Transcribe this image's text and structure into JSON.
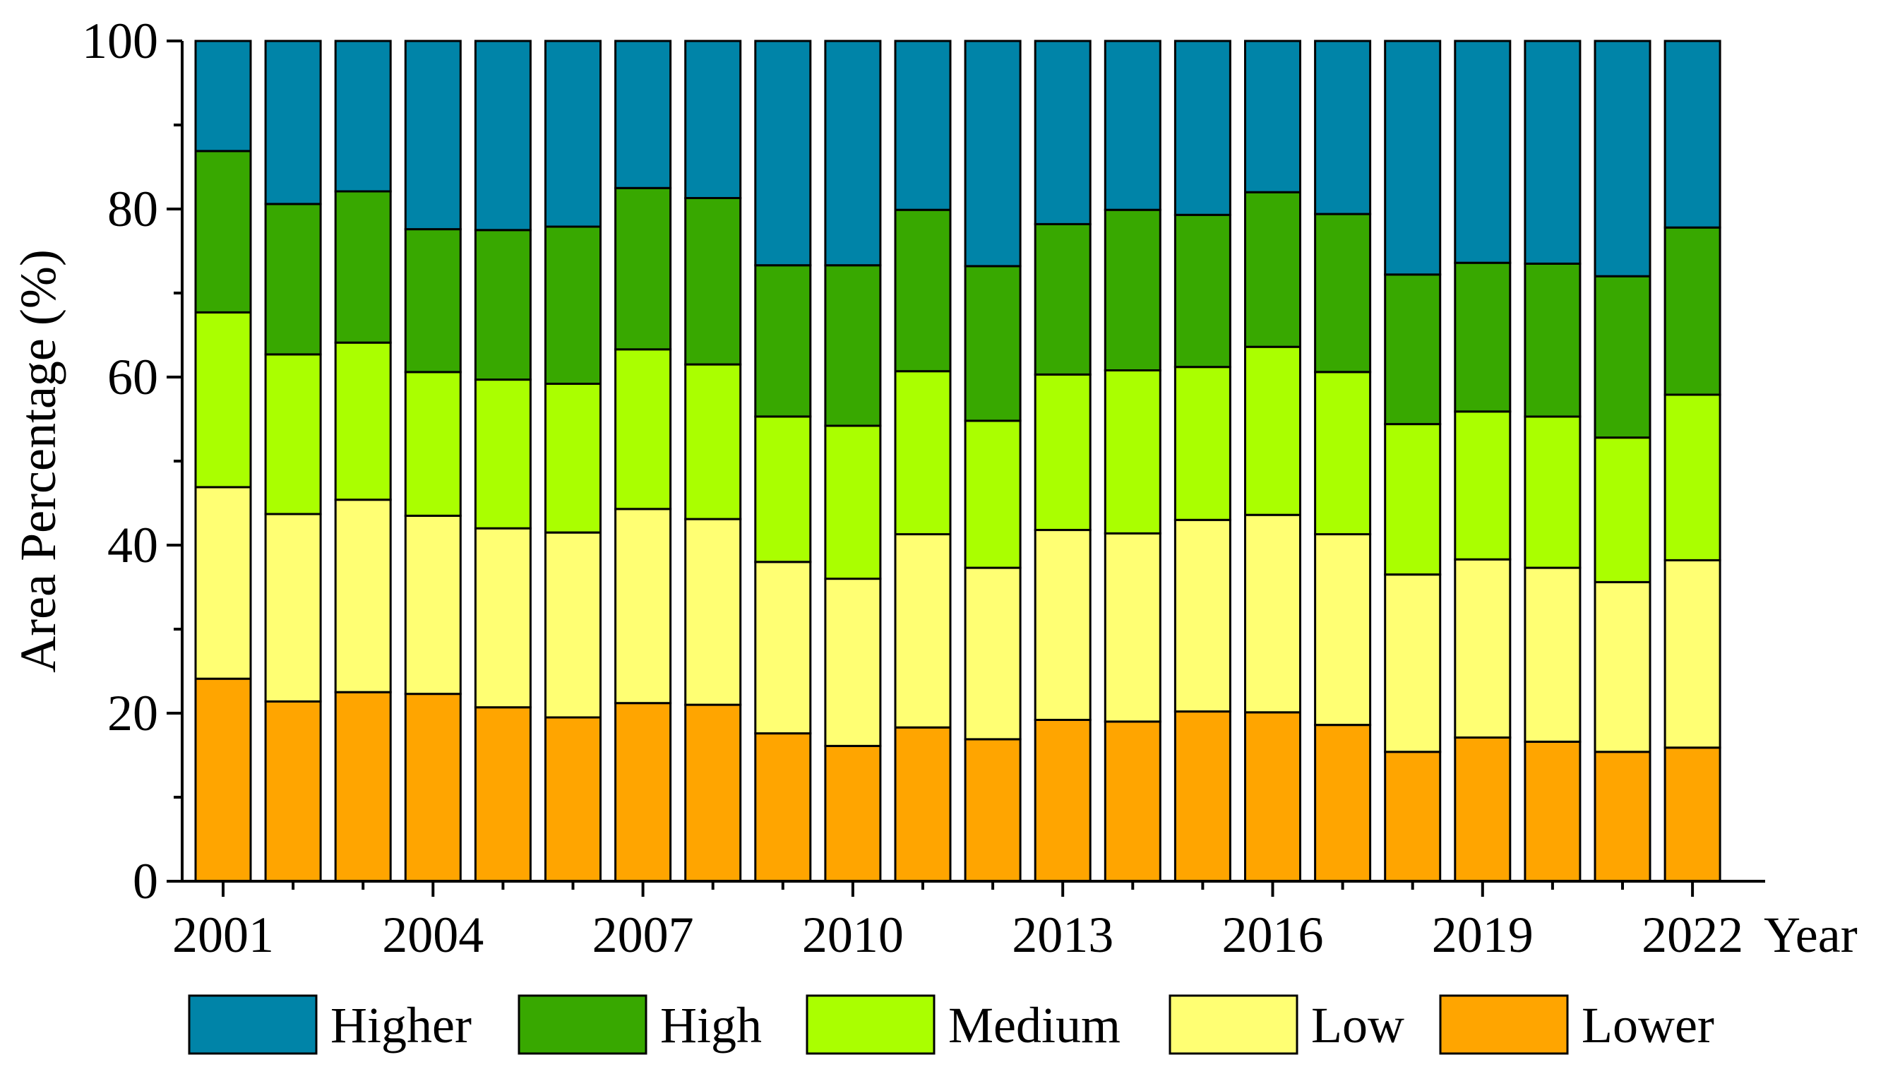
{
  "chart_data": {
    "type": "bar",
    "stacked": true,
    "title": "",
    "xlabel": "Year",
    "ylabel": "Area Percentage (%)",
    "ylim": [
      0,
      100
    ],
    "yticks": [
      0,
      20,
      40,
      60,
      80,
      100
    ],
    "categories": [
      "2001",
      "2002",
      "2003",
      "2004",
      "2005",
      "2006",
      "2007",
      "2008",
      "2009",
      "2010",
      "2011",
      "2012",
      "2013",
      "2014",
      "2015",
      "2016",
      "2017",
      "2018",
      "2019",
      "2020",
      "2021",
      "2022"
    ],
    "xtick_labels": [
      "2001",
      "2004",
      "2007",
      "2010",
      "2013",
      "2016",
      "2019",
      "2022"
    ],
    "legend_position": "bottom",
    "series": [
      {
        "name": "Lower",
        "color": "#FFA500",
        "values": [
          24.1,
          21.4,
          22.5,
          22.3,
          20.7,
          19.5,
          21.2,
          21.0,
          17.6,
          16.1,
          18.3,
          16.9,
          19.2,
          19.0,
          20.2,
          20.1,
          18.6,
          15.4,
          17.1,
          16.6,
          15.4,
          15.9
        ]
      },
      {
        "name": "Low",
        "color": "#FFFF73",
        "values": [
          22.8,
          22.3,
          22.9,
          21.2,
          21.3,
          22.0,
          23.1,
          22.1,
          20.4,
          19.9,
          23.0,
          20.4,
          22.6,
          22.4,
          22.8,
          23.5,
          22.7,
          21.1,
          21.2,
          20.7,
          20.2,
          22.3
        ]
      },
      {
        "name": "Medium",
        "color": "#AAFF00",
        "values": [
          20.8,
          19.0,
          18.7,
          17.1,
          17.7,
          17.7,
          19.0,
          18.4,
          17.3,
          18.2,
          19.4,
          17.5,
          18.5,
          19.4,
          18.2,
          20.0,
          19.3,
          17.9,
          17.6,
          18.0,
          17.2,
          19.7
        ]
      },
      {
        "name": "High",
        "color": "#38A800",
        "values": [
          19.2,
          17.9,
          18.0,
          17.0,
          17.8,
          18.7,
          19.2,
          19.8,
          18.0,
          19.1,
          19.2,
          18.4,
          17.9,
          19.1,
          18.1,
          18.4,
          18.8,
          17.8,
          17.7,
          18.2,
          19.2,
          19.9
        ]
      },
      {
        "name": "Higher",
        "color": "#0084A8",
        "values": [
          13.1,
          19.4,
          17.9,
          22.4,
          22.5,
          22.1,
          17.5,
          18.7,
          26.7,
          26.7,
          20.1,
          26.8,
          21.8,
          20.1,
          20.7,
          18.0,
          20.6,
          27.8,
          26.4,
          26.5,
          28.0,
          22.2
        ]
      }
    ],
    "legend_order": [
      "Higher",
      "High",
      "Medium",
      "Low",
      "Lower"
    ]
  }
}
